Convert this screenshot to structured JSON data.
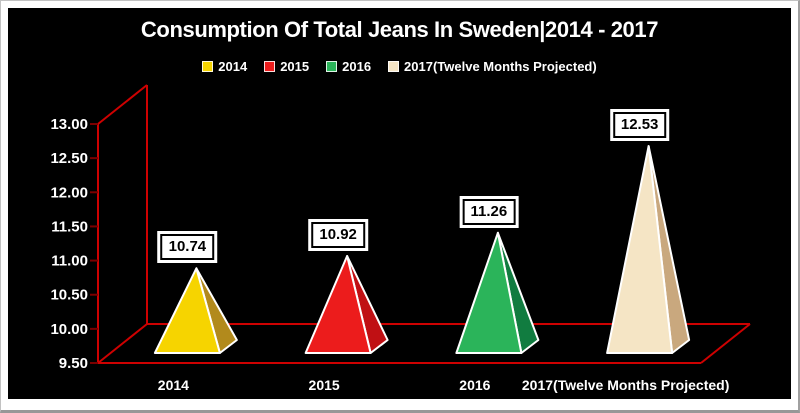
{
  "chart_data": {
    "type": "pyramid-3d-bar",
    "title": "Consumption Of Total Jeans In Sweden|2014 - 2017",
    "categories": [
      "2014",
      "2015",
      "2016",
      "2017(Twelve Months Projected)"
    ],
    "series": [
      {
        "name": "2014",
        "value": 10.74,
        "data_label": "10.74",
        "color": "#F6D400",
        "side_color": "#B28A1C"
      },
      {
        "name": "2015",
        "value": 10.92,
        "data_label": "10.92",
        "color": "#EC1C1C",
        "side_color": "#C01014"
      },
      {
        "name": "2016",
        "value": 11.26,
        "data_label": "11.26",
        "color": "#2BB45A",
        "side_color": "#117C40"
      },
      {
        "name": "2017(Twelve Months Projected)",
        "value": 12.53,
        "data_label": "12.53",
        "color": "#F5E5C5",
        "side_color": "#C9A87E"
      }
    ],
    "y_axis": {
      "min": 9.5,
      "max": 13.0,
      "step": 0.5,
      "tick_labels": [
        "13.00",
        "12.50",
        "12.00",
        "11.50",
        "11.00",
        "10.50",
        "10.00",
        "9.50"
      ]
    },
    "legend_position": "top",
    "grid": false,
    "background_color": "#000000",
    "axis_color": "#CE0101",
    "tick_color": "#7A0000",
    "edge_color": "#FFFFFF",
    "data_label_style": {
      "background": "#FFFFFF",
      "text": "#000000",
      "border": "#000000"
    }
  }
}
